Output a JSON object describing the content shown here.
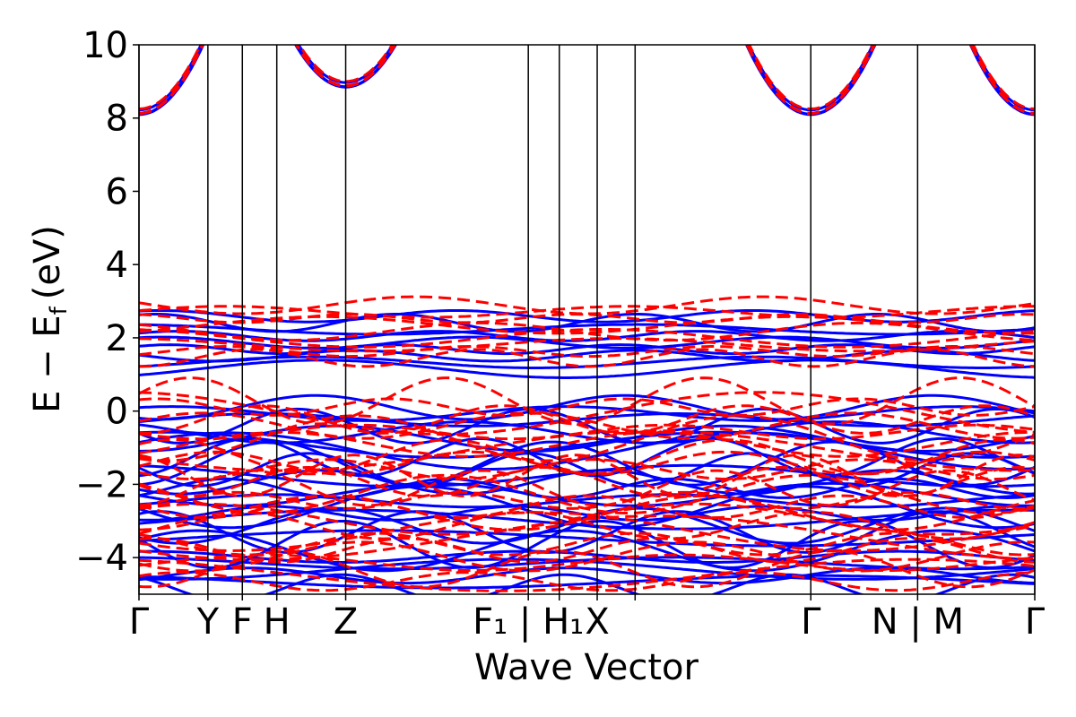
{
  "chart_data": {
    "type": "line",
    "title": "",
    "xlabel": "Wave Vector",
    "ylabel": "E − E_f (eV)",
    "ylabel_main": "E − E",
    "ylabel_sub": "f",
    "ylabel_unit": "(eV)",
    "ylim": [
      -5,
      10
    ],
    "yticks": [
      -4,
      -2,
      0,
      2,
      4,
      6,
      8,
      10
    ],
    "ytick_labels": [
      "−4",
      "−2",
      "0",
      "2",
      "4",
      "6",
      "8",
      "10"
    ],
    "xlim": [
      0,
      13
    ],
    "high_symmetry_points": [
      {
        "x": 0.0,
        "label": "Γ"
      },
      {
        "x": 1.0,
        "label": "Y"
      },
      {
        "x": 1.5,
        "label": "F"
      },
      {
        "x": 2.0,
        "label": "H"
      },
      {
        "x": 3.0,
        "label": "Z"
      },
      {
        "x": 5.65,
        "label": "F₁ | H₁"
      },
      {
        "x": 6.1,
        "label": ""
      },
      {
        "x": 6.65,
        "label": "X"
      },
      {
        "x": 7.2,
        "label": ""
      },
      {
        "x": 9.75,
        "label": "Γ"
      },
      {
        "x": 11.3,
        "label": "N | M"
      },
      {
        "x": 13.0,
        "label": "Γ"
      }
    ],
    "series": [
      {
        "style": "solid",
        "color": "#0000ff"
      },
      {
        "style": "dashed",
        "color": "#ff0000"
      }
    ],
    "grid": false,
    "legend": "none"
  }
}
